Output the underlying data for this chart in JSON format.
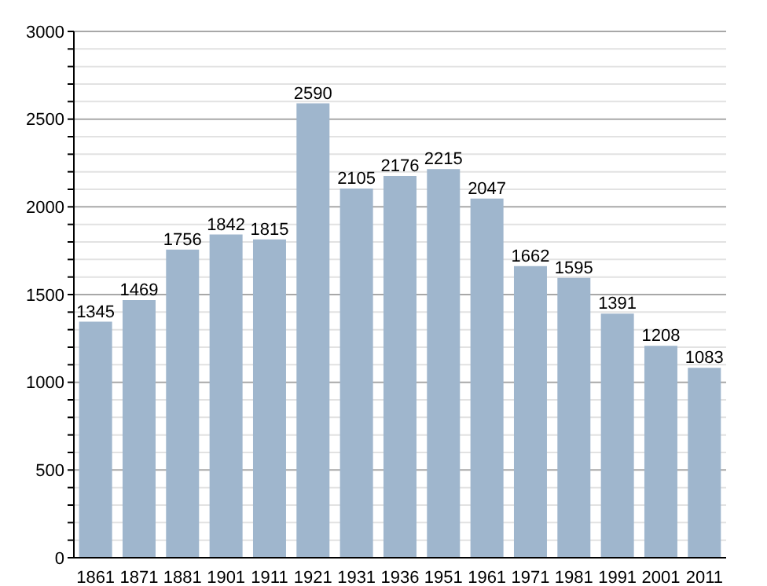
{
  "chart_data": {
    "type": "bar",
    "categories": [
      "1861",
      "1871",
      "1881",
      "1901",
      "1911",
      "1921",
      "1931",
      "1936",
      "1951",
      "1961",
      "1971",
      "1981",
      "1991",
      "2001",
      "2011"
    ],
    "values": [
      1345,
      1469,
      1756,
      1842,
      1815,
      2590,
      2105,
      2176,
      2215,
      2047,
      1662,
      1595,
      1391,
      1208,
      1083
    ],
    "color": "#9fb6cd",
    "data_labels": true,
    "grid": "y",
    "ylim": [
      0,
      3000
    ],
    "yticks": [
      0,
      {
        "value": 100,
        "label": null
      },
      {
        "value": 200,
        "label": null
      },
      {
        "value": 300,
        "label": null
      },
      {
        "value": 400,
        "label": null
      },
      500,
      {
        "value": 600,
        "label": null
      },
      {
        "value": 700,
        "label": null
      },
      {
        "value": 800,
        "label": null
      },
      {
        "value": 900,
        "label": null
      },
      1000,
      {
        "value": 1100,
        "label": null
      },
      {
        "value": 1200,
        "label": null
      },
      {
        "value": 1300,
        "label": null
      },
      {
        "value": 1400,
        "label": null
      },
      1500,
      {
        "value": 1600,
        "label": null
      },
      {
        "value": 1700,
        "label": null
      },
      {
        "value": 1800,
        "label": null
      },
      {
        "value": 1900,
        "label": null
      },
      2000,
      {
        "value": 2100,
        "label": null
      },
      {
        "value": 2200,
        "label": null
      },
      {
        "value": 2300,
        "label": null
      },
      {
        "value": 2400,
        "label": null
      },
      2500,
      {
        "value": 2600,
        "label": null
      },
      {
        "value": 2700,
        "label": null
      },
      {
        "value": 2800,
        "label": null
      },
      {
        "value": 2900,
        "label": null
      },
      3000
    ]
  }
}
